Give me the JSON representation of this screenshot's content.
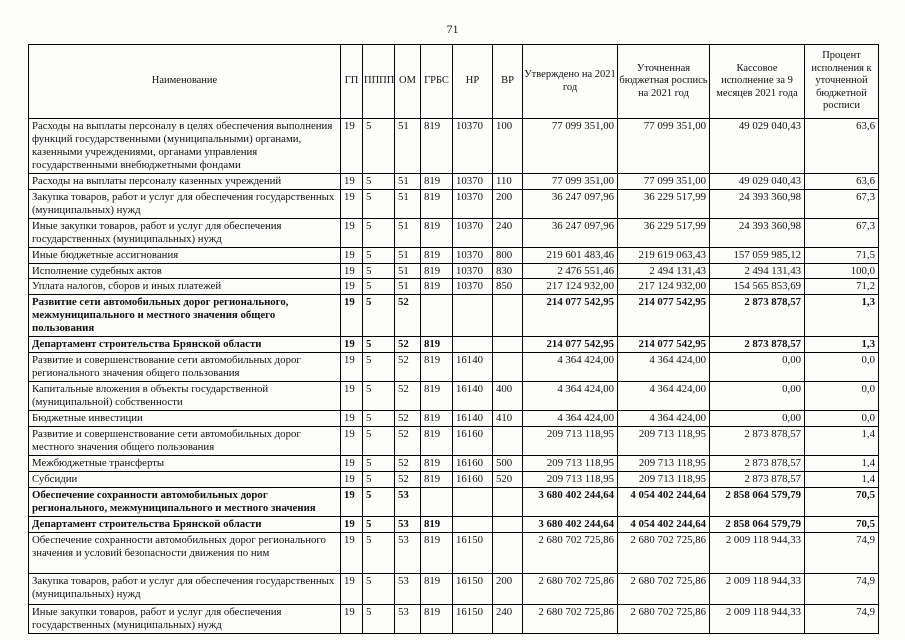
{
  "page": {
    "number": "71"
  },
  "colors": {
    "text": "#111111",
    "background": "#fdfdfc",
    "border": "#000000"
  },
  "table": {
    "headers": [
      "Наименование",
      "ГП",
      "ПППП",
      "ОМ",
      "ГРБС",
      "НР",
      "ВР",
      "Утверждено на 2021 год",
      "Уточненная бюджетная роспись на 2021 год",
      "Кассовое исполнение за 9 месяцев 2021 года",
      "Процент исполнения к уточненной бюджетной росписи"
    ],
    "rows": [
      {
        "name": "Расходы на выплаты персоналу в целях обеспечения выполнения функций государственными (муниципальными) органами, казенными учреждениями, органами управления государственными внебюджетными фондами",
        "gp": "19",
        "pppp": "5",
        "om": "51",
        "grbs": "819",
        "nr": "10370",
        "vr": "100",
        "approved": "77 099 351,00",
        "updated": "77 099 351,00",
        "cash": "49 029 040,43",
        "percent": "63,6",
        "bold": false
      },
      {
        "name": "Расходы на выплаты персоналу казенных учреждений",
        "gp": "19",
        "pppp": "5",
        "om": "51",
        "grbs": "819",
        "nr": "10370",
        "vr": "110",
        "approved": "77 099 351,00",
        "updated": "77 099 351,00",
        "cash": "49 029 040,43",
        "percent": "63,6",
        "bold": false
      },
      {
        "name": "Закупка товаров, работ и услуг для обеспечения государственных (муниципальных) нужд",
        "gp": "19",
        "pppp": "5",
        "om": "51",
        "grbs": "819",
        "nr": "10370",
        "vr": "200",
        "approved": "36 247 097,96",
        "updated": "36 229 517,99",
        "cash": "24 393 360,98",
        "percent": "67,3",
        "bold": false
      },
      {
        "name": "Иные закупки товаров, работ и услуг для обеспечения государственных (муниципальных) нужд",
        "gp": "19",
        "pppp": "5",
        "om": "51",
        "grbs": "819",
        "nr": "10370",
        "vr": "240",
        "approved": "36 247 097,96",
        "updated": "36 229 517,99",
        "cash": "24 393 360,98",
        "percent": "67,3",
        "bold": false
      },
      {
        "name": "Иные бюджетные ассигнования",
        "gp": "19",
        "pppp": "5",
        "om": "51",
        "grbs": "819",
        "nr": "10370",
        "vr": "800",
        "approved": "219 601 483,46",
        "updated": "219 619 063,43",
        "cash": "157 059 985,12",
        "percent": "71,5",
        "bold": false
      },
      {
        "name": "Исполнение судебных актов",
        "gp": "19",
        "pppp": "5",
        "om": "51",
        "grbs": "819",
        "nr": "10370",
        "vr": "830",
        "approved": "2 476 551,46",
        "updated": "2 494 131,43",
        "cash": "2 494 131,43",
        "percent": "100,0",
        "bold": false
      },
      {
        "name": "Уплата налогов, сборов и иных платежей",
        "gp": "19",
        "pppp": "5",
        "om": "51",
        "grbs": "819",
        "nr": "10370",
        "vr": "850",
        "approved": "217 124 932,00",
        "updated": "217 124 932,00",
        "cash": "154 565 853,69",
        "percent": "71,2",
        "bold": false
      },
      {
        "name": "Развитие сети автомобильных дорог регионального, межмуниципального и местного значения общего пользования",
        "gp": "19",
        "pppp": "5",
        "om": "52",
        "grbs": "",
        "nr": "",
        "vr": "",
        "approved": "214 077 542,95",
        "updated": "214 077 542,95",
        "cash": "2 873 878,57",
        "percent": "1,3",
        "bold": true
      },
      {
        "name": "Департамент строительства Брянской области",
        "gp": "19",
        "pppp": "5",
        "om": "52",
        "grbs": "819",
        "nr": "",
        "vr": "",
        "approved": "214 077 542,95",
        "updated": "214 077 542,95",
        "cash": "2 873 878,57",
        "percent": "1,3",
        "bold": true
      },
      {
        "name": "Развитие и совершенствование сети автомобильных дорог регионального значения общего пользования",
        "gp": "19",
        "pppp": "5",
        "om": "52",
        "grbs": "819",
        "nr": "16140",
        "vr": "",
        "approved": "4 364 424,00",
        "updated": "4 364 424,00",
        "cash": "0,00",
        "percent": "0,0",
        "bold": false
      },
      {
        "name": "Капитальные вложения в объекты государственной (муниципальной) собственности",
        "gp": "19",
        "pppp": "5",
        "om": "52",
        "grbs": "819",
        "nr": "16140",
        "vr": "400",
        "approved": "4 364 424,00",
        "updated": "4 364 424,00",
        "cash": "0,00",
        "percent": "0,0",
        "bold": false
      },
      {
        "name": "Бюджетные инвестиции",
        "gp": "19",
        "pppp": "5",
        "om": "52",
        "grbs": "819",
        "nr": "16140",
        "vr": "410",
        "approved": "4 364 424,00",
        "updated": "4 364 424,00",
        "cash": "0,00",
        "percent": "0,0",
        "bold": false
      },
      {
        "name": "Развитие и совершенствование сети автомобильных дорог местного значения общего пользования",
        "gp": "19",
        "pppp": "5",
        "om": "52",
        "grbs": "819",
        "nr": "16160",
        "vr": "",
        "approved": "209 713 118,95",
        "updated": "209 713 118,95",
        "cash": "2 873 878,57",
        "percent": "1,4",
        "bold": false
      },
      {
        "name": "Межбюджетные трансферты",
        "gp": "19",
        "pppp": "5",
        "om": "52",
        "grbs": "819",
        "nr": "16160",
        "vr": "500",
        "approved": "209 713 118,95",
        "updated": "209 713 118,95",
        "cash": "2 873 878,57",
        "percent": "1,4",
        "bold": false
      },
      {
        "name": "Субсидии",
        "gp": "19",
        "pppp": "5",
        "om": "52",
        "grbs": "819",
        "nr": "16160",
        "vr": "520",
        "approved": "209 713 118,95",
        "updated": "209 713 118,95",
        "cash": "2 873 878,57",
        "percent": "1,4",
        "bold": false
      },
      {
        "name": "Обеспечение сохранности автомобильных дорог регионального, межмуниципального и местного значения",
        "gp": "19",
        "pppp": "5",
        "om": "53",
        "grbs": "",
        "nr": "",
        "vr": "",
        "approved": "3 680 402 244,64",
        "updated": "4 054 402 244,64",
        "cash": "2 858 064 579,79",
        "percent": "70,5",
        "bold": true
      },
      {
        "name": "Департамент строительства Брянской области",
        "gp": "19",
        "pppp": "5",
        "om": "53",
        "grbs": "819",
        "nr": "",
        "vr": "",
        "approved": "3 680 402 244,64",
        "updated": "4 054 402 244,64",
        "cash": "2 858 064 579,79",
        "percent": "70,5",
        "bold": true
      },
      {
        "name": "Обеспечение сохранности автомобильных дорог регионального значения и условий безопасности движения по ним",
        "gp": "19",
        "pppp": "5",
        "om": "53",
        "grbs": "819",
        "nr": "16150",
        "vr": "",
        "approved": "2 680 702 725,86",
        "updated": "2 680 702 725,86",
        "cash": "2 009 118 944,33",
        "percent": "74,9",
        "bold": false
      },
      {
        "name": "Закупка товаров, работ и услуг для обеспечения государственных (муниципальных) нужд",
        "gp": "19",
        "pppp": "5",
        "om": "53",
        "grbs": "819",
        "nr": "16150",
        "vr": "200",
        "approved": "2 680 702 725,86",
        "updated": "2 680 702 725,86",
        "cash": "2 009 118 944,33",
        "percent": "74,9",
        "bold": false
      },
      {
        "name": "Иные закупки товаров, работ и услуг для обеспечения государственных (муниципальных) нужд",
        "gp": "19",
        "pppp": "5",
        "om": "53",
        "grbs": "819",
        "nr": "16150",
        "vr": "240",
        "approved": "2 680 702 725,86",
        "updated": "2 680 702 725,86",
        "cash": "2 009 118 944,33",
        "percent": "74,9",
        "bold": false
      }
    ]
  }
}
